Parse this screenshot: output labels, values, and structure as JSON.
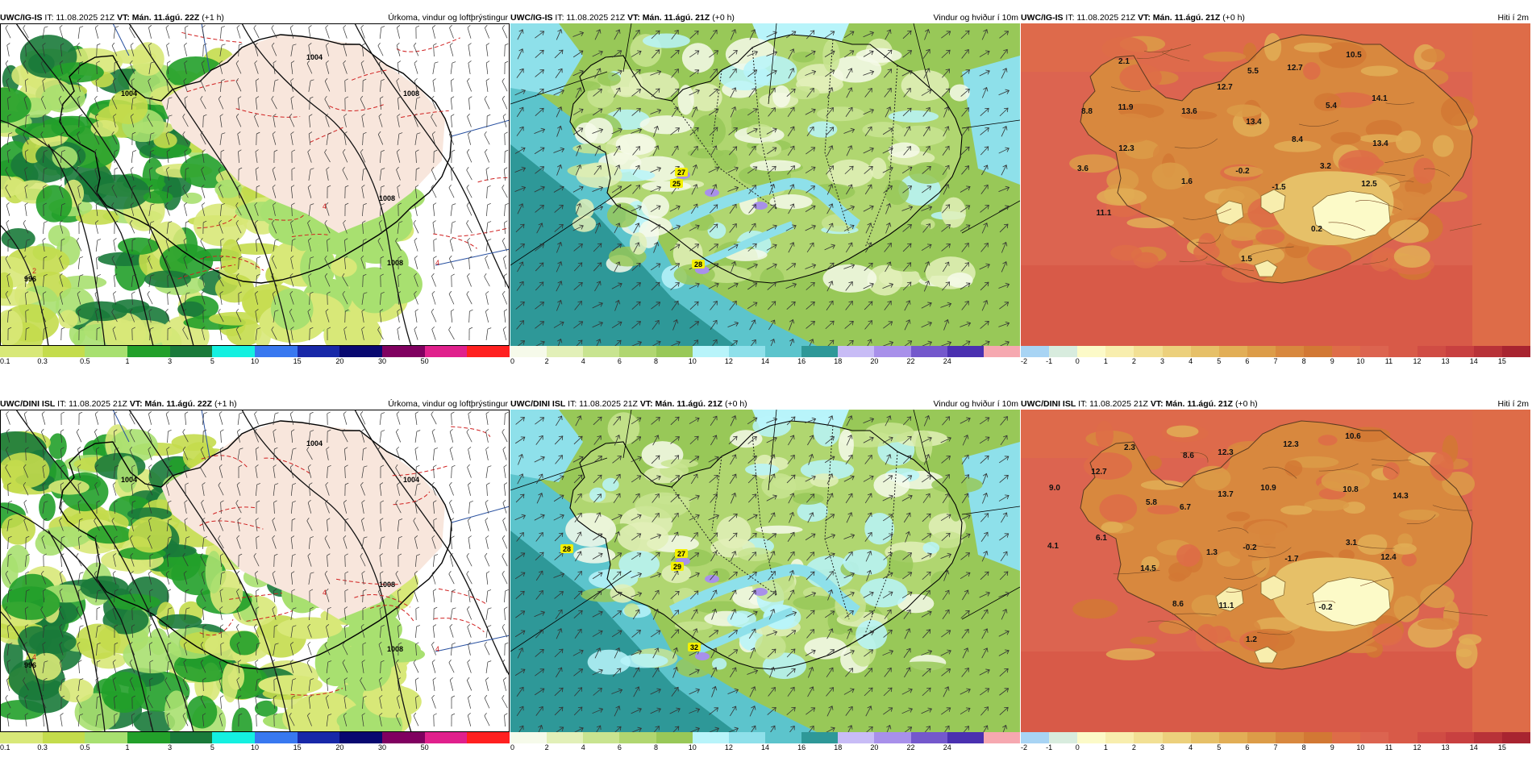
{
  "rows": [
    {
      "panels": [
        {
          "model": "UWC/IG-IS",
          "it": "IT: 11.08.2025 21Z",
          "vt": "VT: Mán. 11.ágú. 22Z",
          "lead": "(+1 h)",
          "title": "Úrkoma, vindur og loftþrýstingur",
          "scale": "precip",
          "pressure_labels": [
            "1004",
            "1004",
            "1008",
            "1008",
            "1008",
            "996",
            "2",
            "4",
            "4"
          ]
        },
        {
          "model": "UWC/IG-IS",
          "it": "IT: 11.08.2025 21Z",
          "vt": "VT: Mán. 11.ágú. 21Z",
          "lead": "(+0 h)",
          "title": "Vindur og hviður í 10m",
          "scale": "wind",
          "gust_labels": [
            "27",
            "25",
            "28"
          ]
        },
        {
          "model": "UWC/IG-IS",
          "it": "IT: 11.08.2025 21Z",
          "vt": "VT: Mán. 11.ágú. 21Z",
          "lead": "(+0 h)",
          "title": "Hiti í 2m",
          "scale": "temp",
          "temp_labels": [
            "2.1",
            "5.5",
            "12.7",
            "10.5",
            "8.8",
            "11.9",
            "12.7",
            "13.6",
            "13.4",
            "5.4",
            "14.1",
            "12.3",
            "8.4",
            "13.4",
            "3.6",
            "1.6",
            "-0.2",
            "3.2",
            "-1.5",
            "12.5",
            "11.1",
            "0.2",
            "1.5"
          ]
        }
      ]
    },
    {
      "panels": [
        {
          "model": "UWC/DINI ISL",
          "it": "IT: 11.08.2025 21Z",
          "vt": "VT: Mán. 11.ágú. 22Z",
          "lead": "(+1 h)",
          "title": "Úrkoma, vindur og loftþrýstingur",
          "scale": "precip",
          "pressure_labels": [
            "1004",
            "1004",
            "1004",
            "1008",
            "1008",
            "996",
            "4",
            "4",
            "4"
          ]
        },
        {
          "model": "UWC/DINI ISL",
          "it": "IT: 11.08.2025 21Z",
          "vt": "VT: Mán. 11.ágú. 21Z",
          "lead": "(+0 h)",
          "title": "Vindur og hviður í 10m",
          "scale": "wind",
          "gust_labels": [
            "28",
            "27",
            "29",
            "32"
          ]
        },
        {
          "model": "UWC/DINI ISL",
          "it": "IT: 11.08.2025 21Z",
          "vt": "VT: Mán. 11.ágú. 21Z",
          "lead": "(+0 h)",
          "title": "Hiti í 2m",
          "scale": "temp",
          "temp_labels": [
            "2.3",
            "8.6",
            "12.3",
            "12.3",
            "10.6",
            "9.0",
            "12.7",
            "5.8",
            "6.7",
            "13.7",
            "10.9",
            "10.8",
            "14.3",
            "6.1",
            "4.1",
            "1.3",
            "-0.2",
            "3.1",
            "-1.7",
            "12.4",
            "14.5",
            "8.6",
            "11.1",
            "-0.2",
            "1.2"
          ]
        }
      ]
    }
  ],
  "scales": {
    "precip": {
      "ticks": [
        "0.1",
        "0.3",
        "0.5",
        "1",
        "3",
        "5",
        "10",
        "15",
        "20",
        "30",
        "50"
      ],
      "colors": [
        "#d8e878",
        "#c4dc4c",
        "#a8e070",
        "#22a02a",
        "#197a3a",
        "#14f0e0",
        "#3878f0",
        "#1828a8",
        "#080870",
        "#800060",
        "#e0208c",
        "#ff2020"
      ]
    },
    "wind": {
      "ticks": [
        "0",
        "2",
        "4",
        "6",
        "8",
        "10",
        "12",
        "14",
        "16",
        "18",
        "20",
        "22",
        "24"
      ],
      "colors": [
        "#f6faea",
        "#e2f0b8",
        "#c8e490",
        "#b0d670",
        "#98c858",
        "#b8f4fa",
        "#8ee0ea",
        "#5cc4cc",
        "#2e9898",
        "#c8bcf6",
        "#a890ea",
        "#7458cc",
        "#4a30b0",
        "#f6a8b0"
      ]
    },
    "temp": {
      "ticks": [
        "-2",
        "-1",
        "0",
        "1",
        "2",
        "3",
        "4",
        "5",
        "6",
        "7",
        "8",
        "9",
        "10",
        "11",
        "12",
        "13",
        "14",
        "15"
      ],
      "colors": [
        "#a8d4f4",
        "#d8ecde",
        "#fcfac8",
        "#f8eeae",
        "#f2e094",
        "#ecd07c",
        "#e6c068",
        "#e2ae56",
        "#dc9c48",
        "#d8883e",
        "#d27834",
        "#de6c48",
        "#dc6450",
        "#d85a48",
        "#d04c44",
        "#c84040",
        "#b83238",
        "#a82430"
      ]
    }
  }
}
